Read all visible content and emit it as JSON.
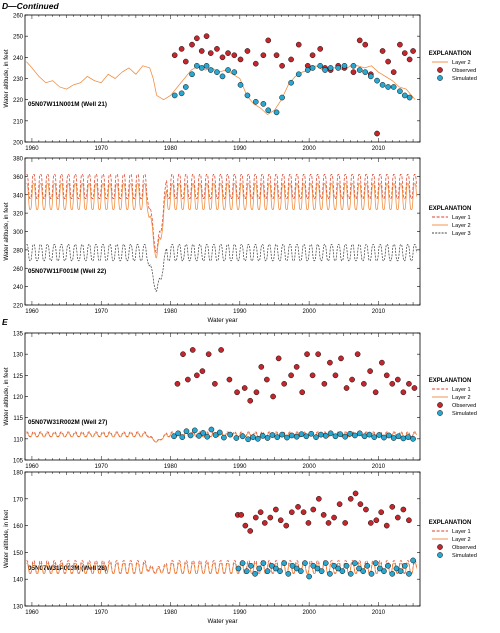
{
  "figure": {
    "label_d": "D",
    "label_d_suffix": "—Continued",
    "label_e": "E"
  },
  "colors": {
    "observed": "#c1272d",
    "simulated": "#2aa6cf",
    "layer1": "#d9432a",
    "layer2": "#f08a3c",
    "layer3": "#444444"
  },
  "chart_data": [
    {
      "type": "line",
      "title": "05N07W11N001M (Well 21)",
      "ylabel": "Water altitude, in feet",
      "xlabel": "",
      "xlim": [
        1959,
        2016
      ],
      "ylim": [
        200,
        260
      ],
      "yticks": [
        200,
        210,
        220,
        230,
        240,
        250,
        260
      ],
      "xticks": [
        1960,
        1970,
        1980,
        1990,
        2000,
        2010
      ],
      "legend_title": "EXPLANATION",
      "legend": [
        {
          "kind": "line",
          "style": "layer2",
          "label": "Layer 2"
        },
        {
          "kind": "dot",
          "style": "observed",
          "label": "Observed"
        },
        {
          "kind": "dot",
          "style": "simulated",
          "label": "Simulated"
        }
      ],
      "series": [
        {
          "name": "Layer 2",
          "style": "layer2",
          "kind": "line",
          "x": [
            1959.2,
            1960,
            1961,
            1962,
            1963,
            1964,
            1965,
            1966,
            1967,
            1968,
            1969,
            1970,
            1971,
            1972,
            1973,
            1974,
            1975,
            1976,
            1977,
            1977.5,
            1978,
            1979,
            1980,
            1981,
            1982,
            1983,
            1984,
            1985,
            1986,
            1987,
            1988,
            1989,
            1990,
            1991,
            1992,
            1993,
            1994,
            1995,
            1996,
            1997,
            1998,
            1999,
            2000,
            2001,
            2002,
            2003,
            2004,
            2005,
            2006,
            2007,
            2008,
            2009,
            2010,
            2011,
            2012,
            2013,
            2014,
            2015.3
          ],
          "y": [
            238,
            235,
            231,
            228,
            229,
            226,
            225,
            227,
            228,
            231,
            229,
            228,
            232,
            230,
            233,
            235,
            232,
            236,
            235,
            230,
            222,
            220,
            222,
            226,
            230,
            234,
            236,
            234,
            235,
            233,
            234,
            232,
            230,
            222,
            218,
            216,
            213,
            215,
            220,
            227,
            231,
            233,
            234,
            236,
            234,
            235,
            235,
            234,
            236,
            236,
            235,
            236,
            233,
            231,
            229,
            226,
            225,
            220
          ]
        },
        {
          "name": "Observed",
          "style": "observed",
          "kind": "dot",
          "x": [
            1980.6,
            1981.6,
            1982.2,
            1983.1,
            1983.8,
            1984.5,
            1985.2,
            1985.8,
            1986.7,
            1987.5,
            1988.3,
            1989.2,
            1990.1,
            1991.1,
            1992.3,
            1993.4,
            1994.1,
            1995.3,
            1996.1,
            1997.4,
            1998.5,
            1999.8,
            2000.5,
            2001.6,
            2002.3,
            2003.1,
            2004.2,
            2005.1,
            2006.4,
            2007.3,
            2008.1,
            2008.9,
            2009.8,
            2010.6,
            2011.4,
            2012.2,
            2013.1,
            2013.8,
            2014.5,
            2015.0
          ],
          "y": [
            241,
            244,
            238,
            246,
            249,
            243,
            250,
            242,
            244,
            240,
            242,
            241,
            239,
            243,
            237,
            241,
            248,
            241,
            236,
            239,
            246,
            236,
            241,
            244,
            235,
            234,
            236,
            235,
            233,
            248,
            246,
            232,
            204,
            243,
            238,
            233,
            246,
            242,
            239,
            243
          ]
        },
        {
          "name": "Simulated",
          "style": "simulated",
          "kind": "dot",
          "x": [
            1980.6,
            1981.6,
            1982.2,
            1983.1,
            1983.8,
            1984.5,
            1985.2,
            1985.8,
            1986.7,
            1987.5,
            1988.3,
            1989.2,
            1990.1,
            1991.1,
            1992.3,
            1993.4,
            1994.1,
            1995.3,
            1996.1,
            1997.4,
            1998.5,
            1999.8,
            2000.5,
            2001.6,
            2002.3,
            2003.1,
            2004.2,
            2005.1,
            2006.4,
            2007.3,
            2008.1,
            2008.9,
            2009.8,
            2010.6,
            2011.4,
            2012.2,
            2013.1,
            2013.8,
            2014.5
          ],
          "y": [
            222,
            223,
            226,
            232,
            236,
            235,
            236,
            234,
            233,
            231,
            234,
            233,
            227,
            222,
            219,
            218,
            215,
            214,
            221,
            228,
            232,
            234,
            235,
            236,
            234,
            235,
            235,
            236,
            236,
            234,
            233,
            231,
            229,
            227,
            226,
            226,
            224,
            222,
            221
          ]
        }
      ]
    },
    {
      "type": "line",
      "title": "05N07W11F001M (Well 22)",
      "ylabel": "Water altitude, in feet",
      "xlabel": "Water year",
      "xlim": [
        1959,
        2016
      ],
      "ylim": [
        220,
        380
      ],
      "yticks": [
        220,
        240,
        260,
        280,
        300,
        320,
        340,
        360,
        380
      ],
      "xticks": [
        1960,
        1970,
        1980,
        1990,
        2000,
        2010
      ],
      "legend_title": "EXPLANATION",
      "legend": [
        {
          "kind": "line",
          "style": "layer1",
          "label": "Layer 1"
        },
        {
          "kind": "line",
          "style": "layer2",
          "label": "Layer 2"
        },
        {
          "kind": "line",
          "style": "layer3",
          "label": "Layer 3"
        }
      ],
      "series": [
        {
          "name": "Layer 1",
          "style": "layer1",
          "kind": "seasonal",
          "start": 1959.2,
          "end": 2015.5,
          "base": 349,
          "amp": 15,
          "dip_year": 1978,
          "dip_to": 275
        },
        {
          "name": "Layer 2",
          "style": "layer2",
          "kind": "seasonal",
          "start": 1959.2,
          "end": 2015.5,
          "base": 338,
          "amp": 16,
          "dip_year": 1978,
          "dip_to": 270
        },
        {
          "name": "Layer 3",
          "style": "layer3",
          "kind": "seasonal",
          "start": 1959.2,
          "end": 2015.5,
          "base": 277,
          "amp": 10,
          "dip_year": 1978,
          "dip_to": 234
        }
      ]
    },
    {
      "type": "line",
      "title": "05N07W31R002M (Well 27)",
      "ylabel": "Water altitude, in feet",
      "xlabel": "",
      "xlim": [
        1959,
        2016
      ],
      "ylim": [
        105,
        135
      ],
      "yticks": [
        105,
        110,
        115,
        120,
        125,
        130,
        135
      ],
      "xticks": [
        1960,
        1970,
        1980,
        1990,
        2000,
        2010
      ],
      "legend_title": "EXPLANATION",
      "legend": [
        {
          "kind": "line",
          "style": "layer1",
          "label": "Layer 1"
        },
        {
          "kind": "line",
          "style": "layer2",
          "label": "Layer 2"
        },
        {
          "kind": "dot",
          "style": "observed",
          "label": "Observed"
        },
        {
          "kind": "dot",
          "style": "simulated",
          "label": "Simulated"
        }
      ],
      "series": [
        {
          "name": "Layer 1",
          "style": "layer1",
          "kind": "seasonal",
          "start": 1959.2,
          "end": 2015.5,
          "base": 111.1,
          "amp": 0.6,
          "dip_year": 1978,
          "dip_to": 109.3
        },
        {
          "name": "Layer 2",
          "style": "layer2",
          "kind": "seasonal",
          "start": 1959.2,
          "end": 2015.5,
          "base": 110.9,
          "amp": 0.5,
          "dip_year": 1978,
          "dip_to": 109.2
        },
        {
          "name": "Observed",
          "style": "observed",
          "kind": "dot",
          "x": [
            1981.0,
            1981.8,
            1982.5,
            1983.2,
            1983.8,
            1984.6,
            1985.5,
            1986.4,
            1987.3,
            1988.5,
            1989.6,
            1990.7,
            1991.5,
            1992.4,
            1993.1,
            1993.9,
            1994.8,
            1995.6,
            1996.4,
            1997.4,
            1998.2,
            1999.0,
            1999.7,
            2000.5,
            2001.3,
            2002.2,
            2003.0,
            2003.8,
            2004.6,
            2005.4,
            2006.2,
            2007.0,
            2007.9,
            2008.8,
            2009.6,
            2010.5,
            2011.2,
            2012.0,
            2012.8,
            2013.6,
            2014.4,
            2015.2
          ],
          "y": [
            123,
            130,
            124,
            131,
            125,
            126,
            130,
            123,
            131,
            124,
            121,
            122,
            119,
            121,
            127,
            124,
            120,
            129,
            123,
            125,
            127,
            121,
            130,
            125,
            130,
            123,
            128,
            125,
            129,
            122,
            124,
            130,
            123,
            126,
            121,
            128,
            125,
            123,
            124,
            121,
            123,
            122
          ]
        },
        {
          "name": "Simulated",
          "style": "simulated",
          "kind": "dot",
          "x": [
            1980.5,
            1981.1,
            1981.7,
            1982.3,
            1982.9,
            1983.5,
            1984.1,
            1984.7,
            1985.3,
            1985.9,
            1986.5,
            1987.1,
            1987.7,
            1988.6,
            1989.5,
            1990.4,
            1991.2,
            1991.9,
            1992.6,
            1993.3,
            1994.0,
            1994.7,
            1995.4,
            1996.1,
            1996.8,
            1997.5,
            1998.2,
            1998.9,
            1999.6,
            2000.3,
            2001.0,
            2001.7,
            2002.4,
            2003.1,
            2003.8,
            2004.5,
            2005.2,
            2005.9,
            2006.6,
            2007.3,
            2008.0,
            2008.7,
            2009.4,
            2010.1,
            2010.8,
            2011.5,
            2012.2,
            2012.9,
            2013.6,
            2014.3,
            2015.0
          ],
          "y": [
            110.6,
            111.3,
            110.4,
            111.8,
            110.8,
            112.0,
            110.7,
            111.4,
            110.5,
            112.2,
            110.9,
            111.5,
            110.3,
            111.0,
            110.2,
            110.6,
            109.9,
            110.4,
            110.0,
            110.7,
            110.2,
            110.9,
            110.4,
            111.0,
            110.3,
            110.8,
            110.5,
            111.1,
            110.6,
            111.2,
            110.4,
            111.0,
            110.7,
            111.3,
            110.6,
            111.1,
            110.5,
            111.2,
            110.8,
            111.3,
            110.6,
            111.0,
            110.4,
            110.9,
            110.3,
            110.8,
            110.2,
            110.6,
            110.1,
            110.4,
            110.0
          ]
        }
      ]
    },
    {
      "type": "line",
      "title": "05N07W31P003M (Well 28)",
      "ylabel": "Water altitude, in feet",
      "xlabel": "Water year",
      "xlim": [
        1959,
        2016
      ],
      "ylim": [
        130,
        180
      ],
      "yticks": [
        130,
        140,
        150,
        160,
        170,
        180
      ],
      "xticks": [
        1960,
        1970,
        1980,
        1990,
        2000,
        2010
      ],
      "legend_title": "EXPLANATION",
      "legend": [
        {
          "kind": "line",
          "style": "layer1",
          "label": "Layer 1"
        },
        {
          "kind": "line",
          "style": "layer2",
          "label": "Layer 2"
        },
        {
          "kind": "dot",
          "style": "observed",
          "label": "Observed"
        },
        {
          "kind": "dot",
          "style": "simulated",
          "label": "Simulated"
        }
      ],
      "series": [
        {
          "name": "Layer 1",
          "style": "layer1",
          "kind": "seasonal",
          "start": 1959.2,
          "end": 2015.5,
          "base": 144.6,
          "amp": 2.6,
          "dip_year": 1978,
          "dip_to": 143.2
        },
        {
          "name": "Layer 2",
          "style": "layer2",
          "kind": "seasonal",
          "start": 1959.2,
          "end": 2015.5,
          "base": 144.0,
          "amp": 2.2,
          "dip_year": 1978,
          "dip_to": 142.8
        },
        {
          "name": "Observed",
          "style": "observed",
          "kind": "dot",
          "x": [
            1989.7,
            1990.2,
            1990.8,
            1991.5,
            1992.3,
            1993.0,
            1993.6,
            1994.4,
            1995.2,
            1995.9,
            1996.7,
            1997.5,
            1998.4,
            1999.2,
            1999.9,
            2000.6,
            2001.4,
            2002.1,
            2002.8,
            2003.6,
            2004.4,
            2005.2,
            2006.0,
            2006.7,
            2007.4,
            2008.2,
            2008.9,
            2009.7,
            2010.4,
            2011.2,
            2012.0,
            2012.8,
            2013.6,
            2014.4
          ],
          "y": [
            164,
            164,
            160,
            158,
            163,
            165,
            161,
            163,
            166,
            162,
            160,
            165,
            167,
            165,
            161,
            166,
            170,
            164,
            161,
            163,
            168,
            161,
            170,
            172,
            168,
            166,
            161,
            162,
            165,
            160,
            167,
            163,
            166,
            162
          ]
        },
        {
          "name": "Simulated",
          "style": "simulated",
          "kind": "dot",
          "x": [
            1989.8,
            1990.4,
            1991.0,
            1991.6,
            1992.2,
            1992.8,
            1993.4,
            1994.0,
            1994.6,
            1995.2,
            1995.8,
            1996.4,
            1997.0,
            1997.6,
            1998.2,
            1998.8,
            1999.4,
            2000.0,
            2000.6,
            2001.2,
            2001.8,
            2002.4,
            2003.0,
            2003.6,
            2004.2,
            2004.8,
            2005.4,
            2006.0,
            2006.6,
            2007.2,
            2007.8,
            2008.4,
            2009.0,
            2009.6,
            2010.2,
            2010.8,
            2011.4,
            2012.0,
            2012.6,
            2013.2,
            2013.8,
            2014.4,
            2015.0
          ],
          "y": [
            144,
            146,
            143,
            145,
            142,
            144,
            146,
            143,
            145,
            144,
            143,
            146,
            142,
            145,
            144,
            143,
            146,
            141,
            145,
            144,
            143,
            146,
            142,
            145,
            144,
            143,
            145,
            142,
            146,
            144,
            143,
            145,
            142,
            146,
            144,
            143,
            145,
            142,
            144,
            143,
            145,
            142,
            147
          ]
        }
      ]
    }
  ]
}
